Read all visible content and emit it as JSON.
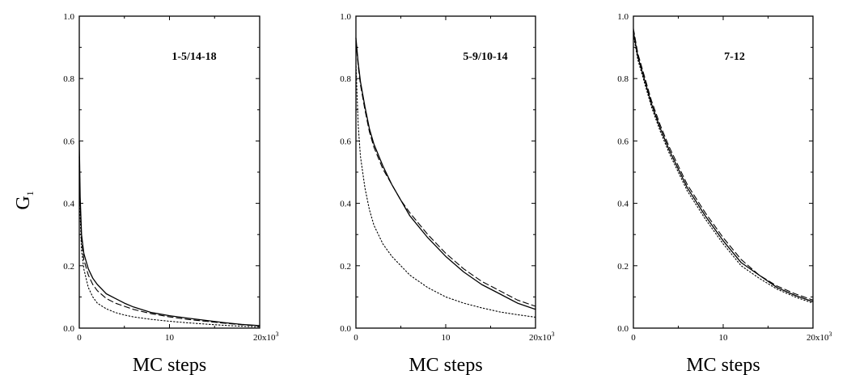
{
  "chart_data": [
    {
      "type": "line",
      "panel_label": "1-5/14-18",
      "ylabel": "G",
      "ylabel_subscript": "1",
      "xlabel": "MC steps",
      "xlim": [
        0,
        20000
      ],
      "ylim": [
        0,
        1.0
      ],
      "x_tick_labels": [
        "0",
        "10",
        "20x10"
      ],
      "x_tick_superscript": "3",
      "y_tick_labels": [
        "0.0",
        "0.2",
        "0.4",
        "0.6",
        "0.8",
        "1.0"
      ],
      "grid": false,
      "series": [
        {
          "style": "solid",
          "x": [
            0,
            100,
            250,
            500,
            1000,
            1500,
            2000,
            3000,
            4000,
            5000,
            6000,
            8000,
            10000,
            12000,
            14000,
            16000,
            18000,
            20000
          ],
          "y": [
            0.6,
            0.42,
            0.3,
            0.24,
            0.19,
            0.16,
            0.14,
            0.11,
            0.095,
            0.08,
            0.068,
            0.05,
            0.04,
            0.032,
            0.025,
            0.018,
            0.012,
            0.008
          ]
        },
        {
          "style": "dashed",
          "x": [
            0,
            100,
            250,
            500,
            1000,
            1500,
            2000,
            3000,
            4000,
            5000,
            6000,
            8000,
            10000,
            12000,
            14000,
            16000,
            18000,
            20000
          ],
          "y": [
            0.55,
            0.4,
            0.28,
            0.22,
            0.17,
            0.14,
            0.12,
            0.095,
            0.08,
            0.07,
            0.06,
            0.046,
            0.036,
            0.028,
            0.022,
            0.016,
            0.011,
            0.007
          ]
        },
        {
          "style": "dotted",
          "x": [
            0,
            100,
            250,
            500,
            1000,
            1500,
            2000,
            3000,
            4000,
            5000,
            6000,
            8000,
            10000,
            12000,
            14000,
            16000,
            18000,
            20000
          ],
          "y": [
            0.52,
            0.36,
            0.25,
            0.19,
            0.13,
            0.1,
            0.08,
            0.062,
            0.05,
            0.042,
            0.036,
            0.028,
            0.022,
            0.017,
            0.013,
            0.009,
            0.006,
            0.004
          ]
        }
      ]
    },
    {
      "type": "line",
      "panel_label": "5-9/10-14",
      "xlabel": "MC steps",
      "xlim": [
        0,
        20000
      ],
      "ylim": [
        0,
        1.0
      ],
      "x_tick_labels": [
        "0",
        "10",
        "20x10"
      ],
      "x_tick_superscript": "3",
      "y_tick_labels": [
        "0.0",
        "0.2",
        "0.4",
        "0.6",
        "0.8",
        "1.0"
      ],
      "grid": false,
      "series": [
        {
          "style": "solid",
          "x": [
            0,
            250,
            500,
            1000,
            1500,
            2000,
            3000,
            4000,
            5000,
            6000,
            8000,
            10000,
            12000,
            14000,
            16000,
            18000,
            20000
          ],
          "y": [
            0.93,
            0.85,
            0.79,
            0.71,
            0.64,
            0.59,
            0.52,
            0.46,
            0.41,
            0.36,
            0.29,
            0.23,
            0.18,
            0.14,
            0.11,
            0.08,
            0.06
          ]
        },
        {
          "style": "dashed",
          "x": [
            0,
            250,
            500,
            1000,
            1500,
            2000,
            3000,
            4000,
            5000,
            6000,
            8000,
            10000,
            12000,
            14000,
            16000,
            18000,
            20000
          ],
          "y": [
            0.92,
            0.84,
            0.78,
            0.7,
            0.63,
            0.58,
            0.51,
            0.46,
            0.41,
            0.37,
            0.3,
            0.24,
            0.19,
            0.15,
            0.12,
            0.09,
            0.07
          ]
        },
        {
          "style": "dotted",
          "x": [
            0,
            250,
            500,
            1000,
            1500,
            2000,
            3000,
            4000,
            5000,
            6000,
            8000,
            10000,
            12000,
            14000,
            16000,
            18000,
            20000
          ],
          "y": [
            0.85,
            0.65,
            0.55,
            0.45,
            0.38,
            0.33,
            0.27,
            0.23,
            0.2,
            0.17,
            0.13,
            0.1,
            0.08,
            0.065,
            0.052,
            0.043,
            0.035
          ]
        }
      ]
    },
    {
      "type": "line",
      "panel_label": "7-12",
      "xlabel": "MC steps",
      "xlim": [
        0,
        20000
      ],
      "ylim": [
        0,
        1.0
      ],
      "x_tick_labels": [
        "0",
        "10",
        "20x10"
      ],
      "x_tick_superscript": "3",
      "y_tick_labels": [
        "0.0",
        "0.2",
        "0.4",
        "0.6",
        "0.8",
        "1.0"
      ],
      "grid": false,
      "series": [
        {
          "style": "solid",
          "x": [
            0,
            500,
            1000,
            2000,
            3000,
            4000,
            5000,
            6000,
            8000,
            10000,
            12000,
            14000,
            16000,
            18000,
            20000
          ],
          "y": [
            0.95,
            0.87,
            0.82,
            0.72,
            0.64,
            0.57,
            0.51,
            0.45,
            0.36,
            0.28,
            0.21,
            0.17,
            0.13,
            0.105,
            0.085
          ]
        },
        {
          "style": "dashed",
          "x": [
            0,
            500,
            1000,
            2000,
            3000,
            4000,
            5000,
            6000,
            8000,
            10000,
            12000,
            14000,
            16000,
            18000,
            20000
          ],
          "y": [
            0.96,
            0.88,
            0.83,
            0.73,
            0.65,
            0.58,
            0.52,
            0.46,
            0.37,
            0.29,
            0.22,
            0.17,
            0.135,
            0.11,
            0.09
          ]
        },
        {
          "style": "dotted",
          "x": [
            0,
            500,
            1000,
            2000,
            3000,
            4000,
            5000,
            6000,
            8000,
            10000,
            12000,
            14000,
            16000,
            18000,
            20000
          ],
          "y": [
            0.94,
            0.86,
            0.81,
            0.71,
            0.63,
            0.56,
            0.5,
            0.44,
            0.35,
            0.27,
            0.2,
            0.16,
            0.125,
            0.1,
            0.08
          ]
        }
      ]
    }
  ]
}
